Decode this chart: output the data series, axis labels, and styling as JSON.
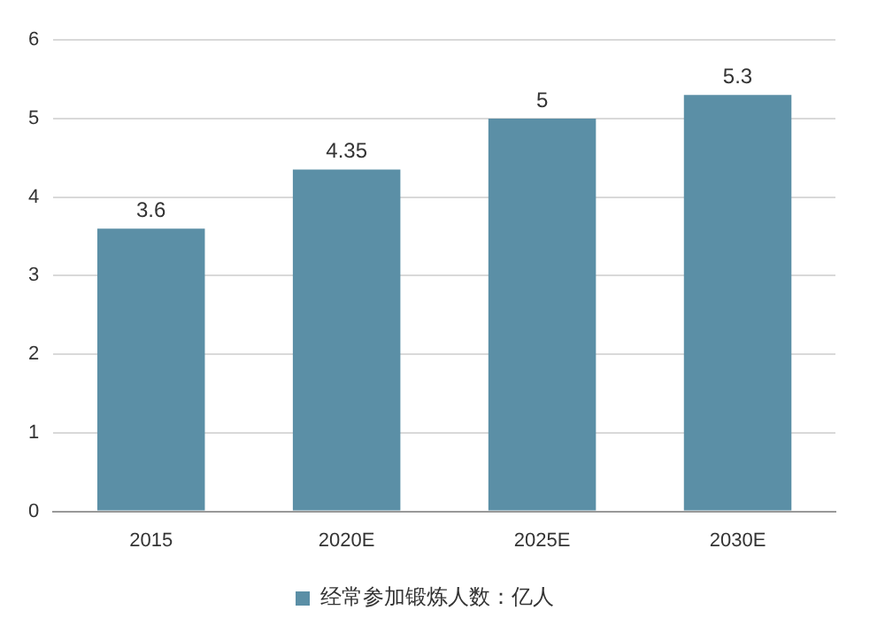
{
  "chart_data": {
    "type": "bar",
    "categories": [
      "2015",
      "2020E",
      "2025E",
      "2030E"
    ],
    "series": [
      {
        "name": "经常参加锻炼人数：亿人",
        "color": "#5b8fa6",
        "values": [
          3.6,
          4.35,
          5,
          5.3
        ]
      }
    ],
    "ylim": [
      0,
      6
    ],
    "yticks": [
      0,
      1,
      2,
      3,
      4,
      5,
      6
    ],
    "grid": "y",
    "legend": "bottom",
    "data_labels": true
  }
}
